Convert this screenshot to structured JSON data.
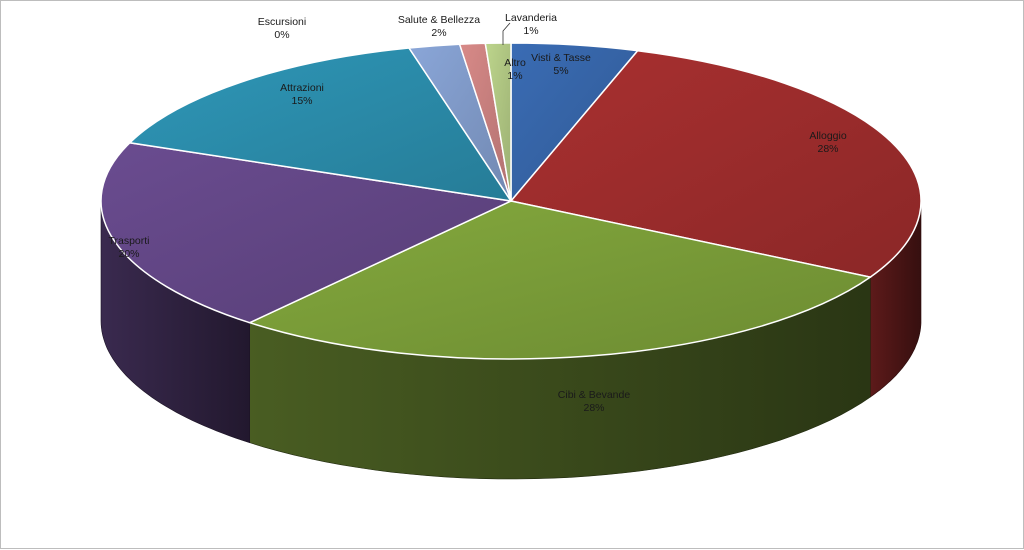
{
  "chart_data": {
    "type": "pie",
    "title": "",
    "style": "3d-exploded-perspective",
    "legend": "none",
    "slices": [
      {
        "label": "Visti & Tasse",
        "value": 5,
        "pct_text": "5%",
        "color": "#3A6CB4"
      },
      {
        "label": "Alloggio",
        "value": 28,
        "pct_text": "28%",
        "color": "#A93030"
      },
      {
        "label": "Cibi & Bevande",
        "value": 28,
        "pct_text": "28%",
        "color": "#84A93D"
      },
      {
        "label": "Trasporti",
        "value": 20,
        "pct_text": "20%",
        "color": "#6A4C90"
      },
      {
        "label": "Attrazioni",
        "value": 15,
        "pct_text": "15%",
        "color": "#2E97B8"
      },
      {
        "label": "Escursioni",
        "value": 0,
        "pct_text": "0%",
        "color": "#E58A2A"
      },
      {
        "label": "Salute & Bellezza",
        "value": 2,
        "pct_text": "2%",
        "color": "#8AA6D8"
      },
      {
        "label": "Lavanderia",
        "value": 1,
        "pct_text": "1%",
        "color": "#D88A88"
      },
      {
        "label": "Altro",
        "value": 1,
        "pct_text": "1%",
        "color": "#BDD58C"
      }
    ]
  }
}
